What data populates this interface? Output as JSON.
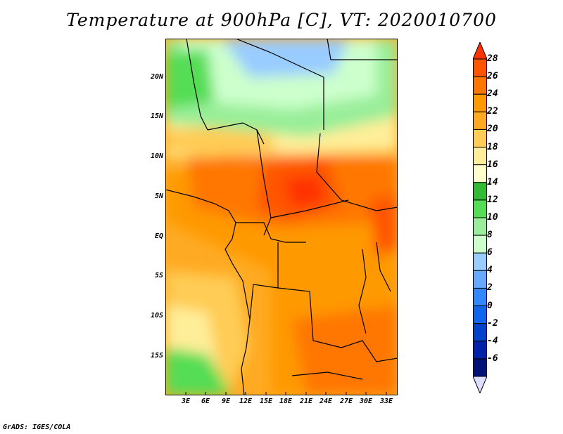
{
  "title": "Temperature at 900hPa [C], VT: 2020010700",
  "footer": "GrADS: IGES/COLA",
  "map": {
    "lat_labels": [
      "20N",
      "15N",
      "10N",
      "5N",
      "EQ",
      "5S",
      "10S",
      "15S"
    ],
    "lon_labels": [
      "3E",
      "6E",
      "9E",
      "12E",
      "15E",
      "18E",
      "21E",
      "24E",
      "27E",
      "30E",
      "33E"
    ]
  },
  "colorbar": {
    "labels": [
      "28",
      "26",
      "24",
      "22",
      "20",
      "18",
      "16",
      "14",
      "12",
      "10",
      "8",
      "6",
      "4",
      "2",
      "0",
      "-2",
      "-4",
      "-6"
    ],
    "colors": [
      "#ff3300",
      "#ff5500",
      "#ff7700",
      "#ff9900",
      "#ffaa22",
      "#ffcc55",
      "#ffee99",
      "#ffffcc",
      "#33bb33",
      "#55dd55",
      "#99ee99",
      "#ccffcc",
      "#99ccff",
      "#66aaff",
      "#3388ff",
      "#1166ee",
      "#0044cc",
      "#0022aa",
      "#001177",
      "#ddddff"
    ]
  },
  "chart_data": {
    "type": "heatmap",
    "title": "Temperature at 900hPa [C], VT: 2020010700",
    "variable": "Temperature at 900hPa",
    "units": "C",
    "valid_time": "2020010700",
    "x_ticks": [
      "3E",
      "6E",
      "9E",
      "12E",
      "15E",
      "18E",
      "21E",
      "24E",
      "27E",
      "30E",
      "33E"
    ],
    "y_ticks": [
      "20N",
      "15N",
      "10N",
      "5N",
      "EQ",
      "5S",
      "10S",
      "15S"
    ],
    "xlim_deg": [
      0,
      35
    ],
    "ylim_deg": [
      -20,
      24
    ],
    "color_levels": [
      -6,
      -4,
      -2,
      0,
      2,
      4,
      6,
      8,
      10,
      12,
      14,
      16,
      18,
      20,
      22,
      24,
      26,
      28
    ]
  }
}
